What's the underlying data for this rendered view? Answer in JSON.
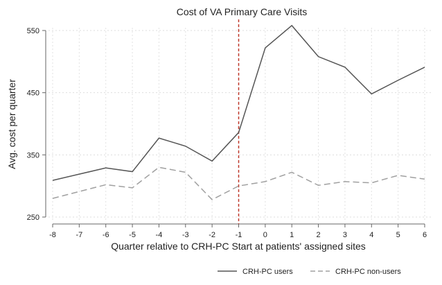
{
  "chart_data": {
    "type": "line",
    "title": "Cost of VA Primary Care Visits",
    "xlabel": "Quarter relative to CRH-PC Start at patients' assigned sites",
    "ylabel": "Avg. cost per quarter",
    "x": [
      -8,
      -7,
      -6,
      -5,
      -4,
      -3,
      -2,
      -1,
      0,
      1,
      2,
      3,
      4,
      5,
      6
    ],
    "xticks": [
      "-8",
      "-7",
      "-6",
      "-5",
      "-4",
      "-3",
      "-2",
      "-1",
      "0",
      "1",
      "2",
      "3",
      "4",
      "5",
      "6"
    ],
    "yticks": [
      "250",
      "350",
      "450",
      "550"
    ],
    "ylim": [
      250,
      550
    ],
    "xlim": [
      -8,
      6
    ],
    "grid": true,
    "reference_line": {
      "x": -1,
      "style": "dashed",
      "color": "#c0392b"
    },
    "legend_position": "bottom",
    "series": [
      {
        "name": "CRH-PC users",
        "style": "solid",
        "color": "#555555",
        "values": [
          309,
          319,
          329,
          323,
          377,
          364,
          340,
          386,
          522,
          558,
          508,
          491,
          448,
          470,
          491
        ]
      },
      {
        "name": "CRH-PC non-users",
        "style": "dashed",
        "color": "#a0a0a0",
        "values": [
          280,
          291,
          302,
          297,
          330,
          322,
          278,
          300,
          307,
          322,
          301,
          307,
          305,
          317,
          311
        ]
      }
    ]
  }
}
